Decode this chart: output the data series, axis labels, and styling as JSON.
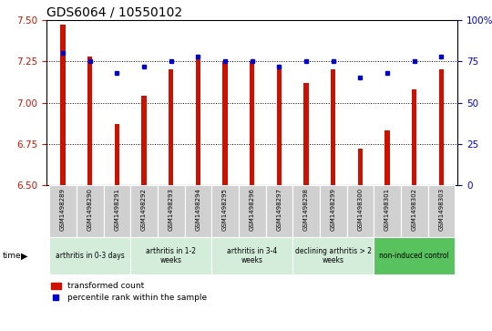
{
  "title": "GDS6064 / 10550102",
  "samples": [
    "GSM1498289",
    "GSM1498290",
    "GSM1498291",
    "GSM1498292",
    "GSM1498293",
    "GSM1498294",
    "GSM1498295",
    "GSM1498296",
    "GSM1498297",
    "GSM1498298",
    "GSM1498299",
    "GSM1498300",
    "GSM1498301",
    "GSM1498302",
    "GSM1498303"
  ],
  "bar_values": [
    7.47,
    7.28,
    6.87,
    7.04,
    7.2,
    7.28,
    7.25,
    7.25,
    7.2,
    7.12,
    7.2,
    6.72,
    6.83,
    7.08,
    7.2
  ],
  "dot_values": [
    80,
    75,
    68,
    72,
    75,
    78,
    75,
    75,
    72,
    75,
    75,
    65,
    68,
    75,
    78
  ],
  "ylim_left": [
    6.5,
    7.5
  ],
  "ylim_right": [
    0,
    100
  ],
  "yticks_left": [
    6.5,
    6.75,
    7.0,
    7.25,
    7.5
  ],
  "yticks_right": [
    0,
    25,
    50,
    75,
    100
  ],
  "bar_color": "#cc1100",
  "dot_color": "#0000cc",
  "bg_sample_row": "#d0d0d0",
  "groups": [
    {
      "label": "arthritis in 0-3 days",
      "start": 0,
      "end": 3,
      "color": "#d4edda"
    },
    {
      "label": "arthritis in 1-2\nweeks",
      "start": 3,
      "end": 6,
      "color": "#d4edda"
    },
    {
      "label": "arthritis in 3-4\nweeks",
      "start": 6,
      "end": 9,
      "color": "#d4edda"
    },
    {
      "label": "declining arthritis > 2\nweeks",
      "start": 9,
      "end": 12,
      "color": "#d4edda"
    },
    {
      "label": "non-induced control",
      "start": 12,
      "end": 15,
      "color": "#57c25e"
    }
  ],
  "legend_bar_label": "transformed count",
  "legend_dot_label": "percentile rank within the sample",
  "left_tick_color": "#cc1100",
  "right_tick_color": "#0000cc",
  "title_fontsize": 10,
  "tick_fontsize": 7.5,
  "bar_width": 0.18
}
